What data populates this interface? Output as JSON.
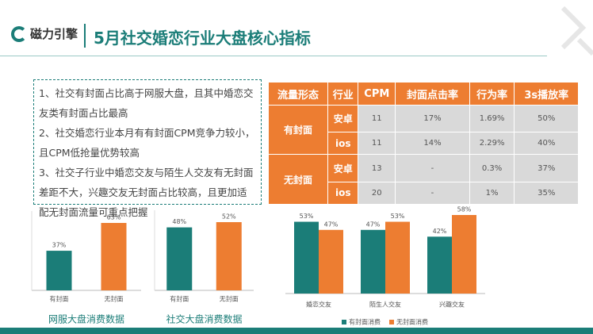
{
  "header": {
    "logo": "磁力引擎",
    "title": "5月社交婚恋行业大盘核心指标"
  },
  "notes": [
    "1、社交有封面占比高于网服大盘，且其中婚恋交友类有封面占比最高",
    "2、社交婚恋行业本月有有封面CPM竞争力较小，且CPM低抢量优势较高",
    "3、社交子行业中婚恋交友与陌生人交友有无封面差距不大，兴趣交友无封面占比较高，且更加适配无封面流量可重点把握"
  ],
  "table": {
    "header": [
      "流量形态",
      "行业",
      "CPM",
      "封面点击率",
      "行为率",
      "3s播放率"
    ],
    "groups": [
      {
        "label": "有封面",
        "rows": [
          [
            "安卓",
            "11",
            "17%",
            "1.69%",
            "50%"
          ],
          [
            "ios",
            "11",
            "14%",
            "2.29%",
            "40%"
          ]
        ]
      },
      {
        "label": "无封面",
        "rows": [
          [
            "安卓",
            "13",
            "-",
            "0.3%",
            "37%"
          ],
          [
            "ios",
            "20",
            "-",
            "1%",
            "35%"
          ]
        ]
      }
    ]
  },
  "chart_data": [
    {
      "type": "bar",
      "title": "网服大盘消费数据",
      "categories": [
        "有封面",
        "无封面"
      ],
      "values": [
        37,
        63
      ],
      "value_labels": [
        "37%",
        "63%"
      ],
      "colors": [
        "#1b7d78",
        "#ed7d31"
      ]
    },
    {
      "type": "bar",
      "title": "社交大盘消费数据",
      "categories": [
        "有封面",
        "无封面"
      ],
      "values": [
        48,
        52
      ],
      "value_labels": [
        "48%",
        "52%"
      ],
      "colors": [
        "#1b7d78",
        "#ed7d31"
      ]
    },
    {
      "type": "grouped_bar",
      "categories": [
        "婚恋交友",
        "陌生人交友",
        "兴趣交友"
      ],
      "legend": "bottom",
      "series": [
        {
          "name": "有封面消费",
          "color": "#1b7d78",
          "values": [
            53,
            47,
            42
          ],
          "value_labels": [
            "53%",
            "47%",
            "42%"
          ]
        },
        {
          "name": "无封面消费",
          "color": "#ed7d31",
          "values": [
            47,
            53,
            58
          ],
          "value_labels": [
            "47%",
            "53%",
            "58%"
          ]
        }
      ]
    }
  ]
}
